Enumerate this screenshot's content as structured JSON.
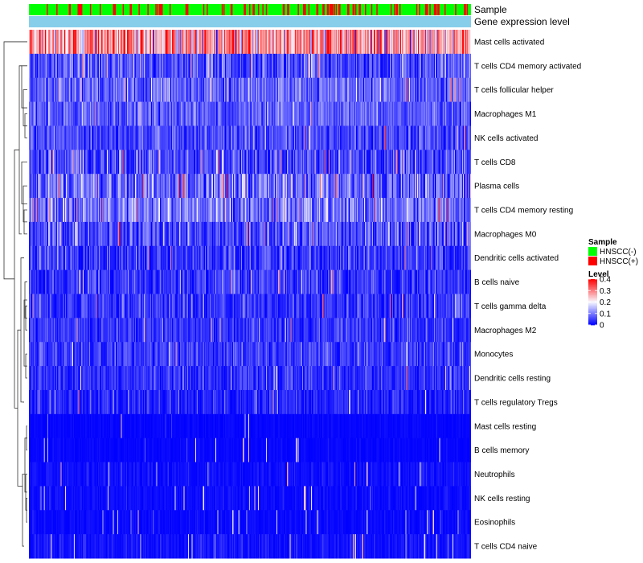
{
  "chart_data": {
    "type": "heatmap",
    "n_samples": 500,
    "value_range": [
      0,
      0.4
    ],
    "colors": {
      "low": "#0000ff",
      "mid": "#f8f8ff",
      "high": "#ff0000",
      "hnscc_neg": "#00ff00",
      "hnscc_pos": "#ff0000",
      "gene_expression_bar": "#87ceeb"
    },
    "annotation_rows": [
      "Sample",
      "Gene expression level"
    ],
    "rows": [
      {
        "label": "Mast cells activated",
        "mean": 0.27,
        "spread": 0.09,
        "spike": 0.05
      },
      {
        "label": "T cells CD4 memory activated",
        "mean": 0.06,
        "spread": 0.05,
        "spike": 0.04
      },
      {
        "label": "T cells follicular helper",
        "mean": 0.08,
        "spread": 0.04,
        "spike": 0.03
      },
      {
        "label": "Macrophages M1",
        "mean": 0.07,
        "spread": 0.035,
        "spike": 0.02
      },
      {
        "label": "NK cells activated",
        "mean": 0.06,
        "spread": 0.035,
        "spike": 0.02
      },
      {
        "label": "T cells CD8",
        "mean": 0.05,
        "spread": 0.05,
        "spike": 0.05
      },
      {
        "label": "Plasma cells",
        "mean": 0.08,
        "spread": 0.06,
        "spike": 0.07
      },
      {
        "label": "T cells CD4 memory resting",
        "mean": 0.09,
        "spread": 0.05,
        "spike": 0.04
      },
      {
        "label": "Macrophages M0",
        "mean": 0.05,
        "spread": 0.05,
        "spike": 0.05
      },
      {
        "label": "Dendritic cells activated",
        "mean": 0.04,
        "spread": 0.04,
        "spike": 0.04
      },
      {
        "label": "B cells naive",
        "mean": 0.04,
        "spread": 0.035,
        "spike": 0.03
      },
      {
        "label": "T cells gamma delta",
        "mean": 0.04,
        "spread": 0.035,
        "spike": 0.03
      },
      {
        "label": "Macrophages M2",
        "mean": 0.04,
        "spread": 0.03,
        "spike": 0.02
      },
      {
        "label": "Monocytes",
        "mean": 0.045,
        "spread": 0.03,
        "spike": 0.02
      },
      {
        "label": "Dendritic cells resting",
        "mean": 0.035,
        "spread": 0.03,
        "spike": 0.02
      },
      {
        "label": "T cells regulatory  Tregs",
        "mean": 0.02,
        "spread": 0.03,
        "spike": 0.03
      },
      {
        "label": "Mast cells resting",
        "mean": 0.004,
        "spread": 0.005,
        "spike": 0.03
      },
      {
        "label": "B cells memory",
        "mean": 0.004,
        "spread": 0.005,
        "spike": 0.03
      },
      {
        "label": "Neutrophils",
        "mean": 0.01,
        "spread": 0.012,
        "spike": 0.03
      },
      {
        "label": "NK cells resting",
        "mean": 0.008,
        "spread": 0.01,
        "spike": 0.03
      },
      {
        "label": "Eosinophils",
        "mean": 0.006,
        "spread": 0.008,
        "spike": 0.03
      },
      {
        "label": "T cells CD4 naive",
        "mean": 0.012,
        "spread": 0.015,
        "spike": 0.04
      }
    ],
    "legend": {
      "sample_title": "Sample",
      "sample_items": [
        "HNSCC(-)",
        "HNSCC(+)"
      ],
      "level_title": "Level",
      "level_ticks": [
        "0.4",
        "0.3",
        "0.2",
        "0.1",
        "0"
      ],
      "level_tick_values": [
        0.4,
        0.3,
        0.2,
        0.1,
        0
      ],
      "placement": "right"
    }
  }
}
